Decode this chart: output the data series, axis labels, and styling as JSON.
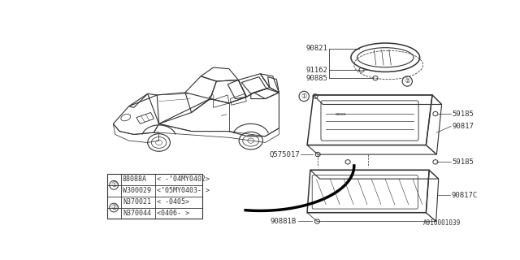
{
  "bg_color": "#ffffff",
  "fig_width": 6.4,
  "fig_height": 3.2,
  "dpi": 100,
  "part_number_watermark": "A910001039",
  "line_color": "#333333",
  "table": {
    "rows": [
      [
        "88088A",
        "< -’04MY0402>"
      ],
      [
        "W300029",
        "<’05MY0403- >"
      ],
      [
        "N370021",
        "< -0405>"
      ],
      [
        "N370044",
        "<0406- >"
      ]
    ]
  }
}
